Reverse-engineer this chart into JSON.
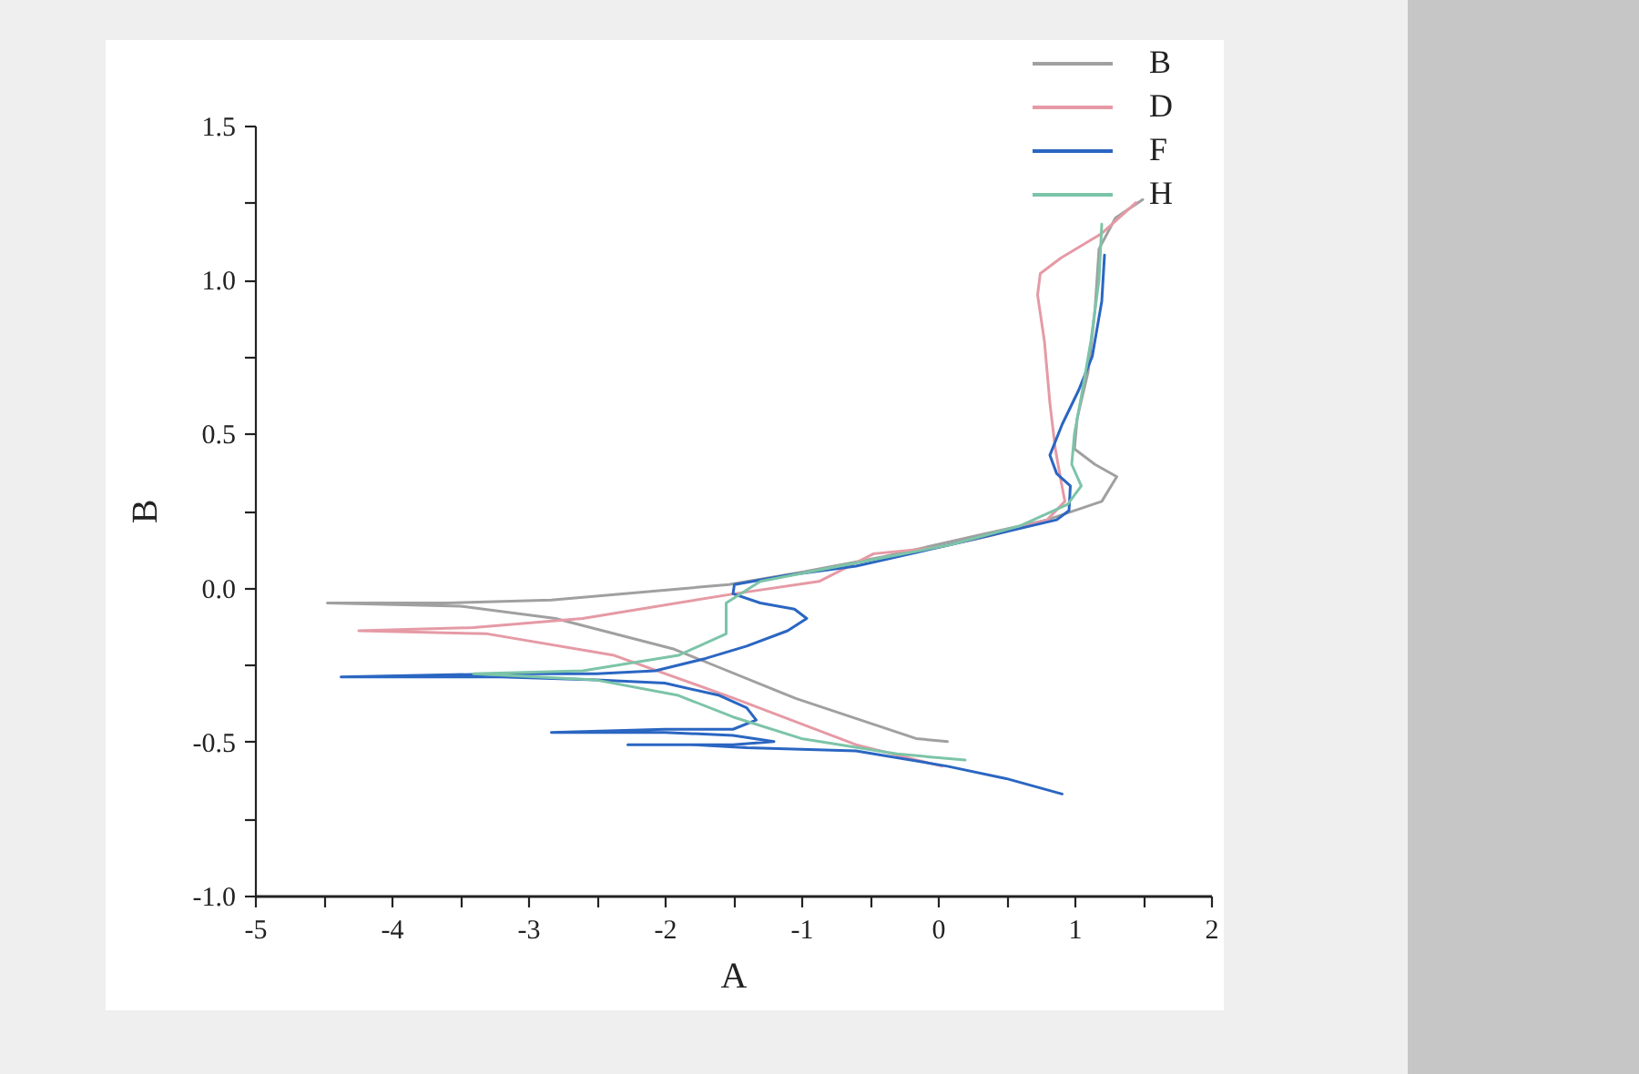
{
  "chart_data": {
    "type": "line",
    "xlabel": "A",
    "ylabel": "B",
    "legend": "top right",
    "xlim": [
      -5,
      2
    ],
    "ylim": [
      -1,
      1.5
    ],
    "xticks": [
      -5,
      {
        "value": -4.5,
        "label": null
      },
      -4,
      {
        "value": -3.5,
        "label": null
      },
      -3,
      {
        "value": -2.5,
        "label": null
      },
      -2,
      {
        "value": -1.5,
        "label": null
      },
      -1,
      {
        "value": -0.5,
        "label": null
      },
      0,
      {
        "value": 0.5,
        "label": null
      },
      1,
      {
        "value": 1.5,
        "label": null
      },
      2
    ],
    "yticks": [
      {
        "value": -1,
        "label": "-1.0"
      },
      {
        "value": -0.75,
        "label": null
      },
      {
        "value": -0.5,
        "label": "-0.5"
      },
      {
        "value": -0.25,
        "label": null
      },
      {
        "value": 0,
        "label": "0.0"
      },
      {
        "value": 0.25,
        "label": null
      },
      {
        "value": 0.5,
        "label": "0.5"
      },
      {
        "value": 0.75,
        "label": null
      },
      {
        "value": 1,
        "label": "1.0"
      },
      {
        "value": 1.25,
        "label": null
      },
      {
        "value": 1.5,
        "label": "1.5"
      }
    ],
    "series": [
      {
        "name": "B",
        "color": "#a0a0a0",
        "x": [
          1.5,
          1.3,
          1.18,
          1.15,
          1.1,
          1.02,
          1.0,
          1.15,
          1.31,
          1.2,
          0.8,
          0.3,
          -0.4,
          -1.0,
          -1.53,
          -2.83,
          -3.6,
          -4.47,
          -3.5,
          -2.8,
          -1.93,
          -1.04,
          -0.16,
          0.07
        ],
        "values": [
          1.26,
          1.2,
          1.1,
          0.9,
          0.7,
          0.55,
          0.45,
          0.4,
          0.36,
          0.28,
          0.22,
          0.17,
          0.1,
          0.05,
          0.01,
          -0.04,
          -0.05,
          -0.05,
          -0.06,
          -0.1,
          -0.2,
          -0.36,
          -0.49,
          -0.5
        ]
      },
      {
        "name": "D",
        "color": "#e59aa5",
        "x": [
          1.45,
          1.2,
          0.9,
          0.75,
          0.73,
          0.78,
          0.82,
          0.86,
          0.9,
          0.93,
          0.8,
          0.4,
          0.0,
          -0.47,
          -0.87,
          -1.49,
          -2.6,
          -3.4,
          -4.24,
          -3.3,
          -2.37,
          -1.49,
          -0.6,
          0.03
        ],
        "values": [
          1.25,
          1.15,
          1.07,
          1.02,
          0.95,
          0.8,
          0.6,
          0.45,
          0.35,
          0.28,
          0.22,
          0.17,
          0.13,
          0.11,
          0.02,
          -0.02,
          -0.1,
          -0.13,
          -0.14,
          -0.15,
          -0.22,
          -0.36,
          -0.51,
          -0.58
        ]
      },
      {
        "name": "F",
        "color": "#2a66c2",
        "x": [
          1.22,
          1.2,
          1.13,
          1.03,
          0.91,
          0.82,
          0.87,
          0.97,
          0.96,
          0.87,
          0.29,
          -0.1,
          -0.6,
          -1.1,
          -1.49,
          -1.5,
          -1.3,
          -1.05,
          -0.96,
          -1.1,
          -1.4,
          -1.7,
          -2.07,
          -2.5,
          -3.2,
          -4.37,
          -3.2,
          -2.5,
          -2.0,
          -1.6,
          -1.4,
          -1.33,
          -1.5,
          -2.0,
          -2.83,
          -2.0,
          -1.5,
          -1.2,
          -1.5,
          -2.27,
          -1.8,
          -1.4,
          -0.6,
          0.07,
          0.5,
          0.91
        ],
        "values": [
          1.08,
          0.93,
          0.75,
          0.64,
          0.53,
          0.43,
          0.37,
          0.33,
          0.25,
          0.22,
          0.16,
          0.12,
          0.07,
          0.04,
          0.01,
          -0.02,
          -0.05,
          -0.07,
          -0.1,
          -0.14,
          -0.19,
          -0.23,
          -0.27,
          -0.28,
          -0.28,
          -0.29,
          -0.29,
          -0.3,
          -0.31,
          -0.35,
          -0.39,
          -0.43,
          -0.46,
          -0.46,
          -0.47,
          -0.47,
          -0.48,
          -0.5,
          -0.51,
          -0.51,
          -0.51,
          -0.52,
          -0.53,
          -0.58,
          -0.62,
          -0.67
        ]
      },
      {
        "name": "H",
        "color": "#7cc4a8",
        "x": [
          1.2,
          1.18,
          1.12,
          1.05,
          1.0,
          0.98,
          1.05,
          0.95,
          0.6,
          0.1,
          -0.6,
          -1.3,
          -1.55,
          -1.55,
          -1.9,
          -2.6,
          -3.4,
          -2.5,
          -1.9,
          -1.5,
          -1.0,
          -0.3,
          0.2
        ],
        "values": [
          1.18,
          1.0,
          0.8,
          0.62,
          0.5,
          0.4,
          0.33,
          0.27,
          0.2,
          0.14,
          0.08,
          0.02,
          -0.05,
          -0.15,
          -0.22,
          -0.27,
          -0.28,
          -0.3,
          -0.35,
          -0.42,
          -0.49,
          -0.54,
          -0.56
        ]
      }
    ]
  }
}
